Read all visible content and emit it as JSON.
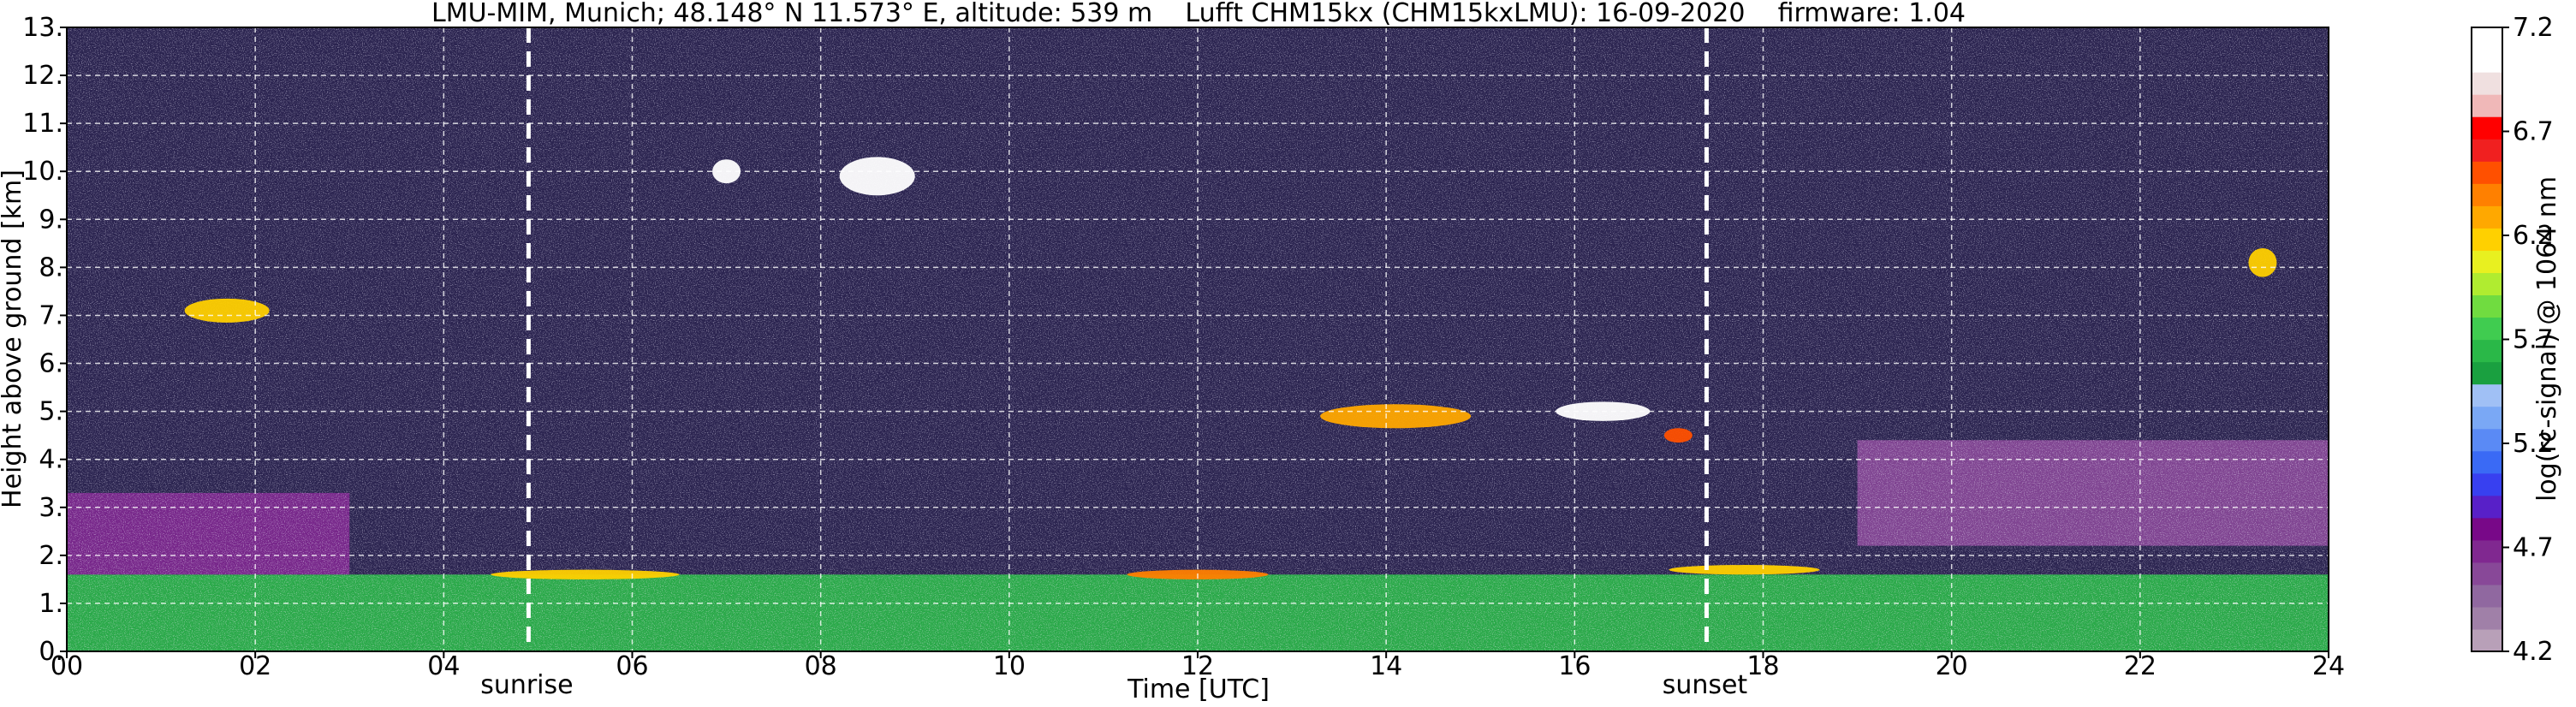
{
  "chart_data": {
    "type": "heatmap",
    "title": "LMU-MIM, Munich; 48.148° N 11.573° E, altitude: 539 m    Lufft CHM15kx (CHM15kxLMU): 16-09-2020    firmware: 1.04",
    "xlabel": "Time [UTC]",
    "ylabel": "Height above ground [km]",
    "colorbar_label": "log(rc-signal) @ 1064 nm",
    "xlim": [
      0,
      24
    ],
    "ylim": [
      0,
      13
    ],
    "x_ticks": [
      0,
      2,
      4,
      6,
      8,
      10,
      12,
      14,
      16,
      18,
      20,
      22,
      24
    ],
    "x_tick_labels": [
      "00",
      "02",
      "04",
      "06",
      "08",
      "10",
      "12",
      "14",
      "16",
      "18",
      "20",
      "22",
      "24"
    ],
    "y_ticks": [
      0,
      1,
      2,
      3,
      4,
      5,
      6,
      7,
      8,
      9,
      10,
      11,
      12,
      13
    ],
    "y_tick_labels": [
      "0.",
      "1.",
      "2.",
      "3.",
      "4.",
      "5.",
      "6.",
      "7.",
      "8.",
      "9.",
      "10.",
      "11.",
      "12.",
      "13."
    ],
    "grid": true,
    "annotations": [
      {
        "label": "sunrise",
        "x": 4.9
      },
      {
        "label": "sunset",
        "x": 17.4
      }
    ],
    "colorbar_range": [
      4.2,
      7.2
    ],
    "colorbar_ticks": [
      4.2,
      4.7,
      5.2,
      5.7,
      6.2,
      6.7,
      7.2
    ],
    "colorbar_tick_labels": [
      "4.2",
      "4.7",
      "5.2",
      "5.7",
      "6.2",
      "6.7",
      "7.2"
    ],
    "colorbar_colors": [
      "#b8a0b8",
      "#a080a8",
      "#9068a0",
      "#884898",
      "#802890",
      "#780888",
      "#5820c8",
      "#3840f0",
      "#3a6af5",
      "#5a8af5",
      "#7aa8f5",
      "#a0c0f5",
      "#1aa040",
      "#2ab848",
      "#40cc50",
      "#70dc40",
      "#b0ec30",
      "#e8f020",
      "#ffd000",
      "#ffa800",
      "#ff8000",
      "#ff5000",
      "#f02020",
      "#ff0000",
      "#f0b8b8",
      "#f0e0e0",
      "#ffffff",
      "#ffffff"
    ],
    "background_color": "#2b2450",
    "layers": [
      {
        "x0": 0.0,
        "x1": 24.0,
        "y0": 0.0,
        "y1": 1.6,
        "color": "#2ab848"
      },
      {
        "x0": 0.0,
        "x1": 3.0,
        "y0": 1.6,
        "y1": 3.3,
        "color": "#802890"
      },
      {
        "x0": 19.0,
        "x1": 24.0,
        "y0": 2.2,
        "y1": 4.4,
        "color": "#884898"
      }
    ],
    "clouds": [
      {
        "x": 1.7,
        "y": 7.1,
        "w": 0.9,
        "h": 0.5,
        "color": "#ffd000",
        "label": ""
      },
      {
        "x": 7.0,
        "y": 10.0,
        "w": 0.3,
        "h": 0.5,
        "color": "#ffffff",
        "label": ""
      },
      {
        "x": 8.6,
        "y": 9.9,
        "w": 0.8,
        "h": 0.8,
        "color": "#ffffff",
        "label": ""
      },
      {
        "x": 14.1,
        "y": 4.9,
        "w": 1.6,
        "h": 0.5,
        "color": "#ffa800",
        "label": ""
      },
      {
        "x": 16.3,
        "y": 5.0,
        "w": 1.0,
        "h": 0.4,
        "color": "#ffffff",
        "label": ""
      },
      {
        "x": 17.1,
        "y": 4.5,
        "w": 0.3,
        "h": 0.3,
        "color": "#ff5000",
        "label": ""
      },
      {
        "x": 23.3,
        "y": 8.1,
        "w": 0.3,
        "h": 0.6,
        "color": "#ffd000",
        "label": ""
      },
      {
        "x": 5.5,
        "y": 1.6,
        "w": 2.0,
        "h": 0.2,
        "color": "#ffd000",
        "label": ""
      },
      {
        "x": 12.0,
        "y": 1.6,
        "w": 1.5,
        "h": 0.2,
        "color": "#ff8000",
        "label": ""
      },
      {
        "x": 17.8,
        "y": 1.7,
        "w": 1.6,
        "h": 0.2,
        "color": "#ffd000",
        "label": ""
      }
    ]
  }
}
